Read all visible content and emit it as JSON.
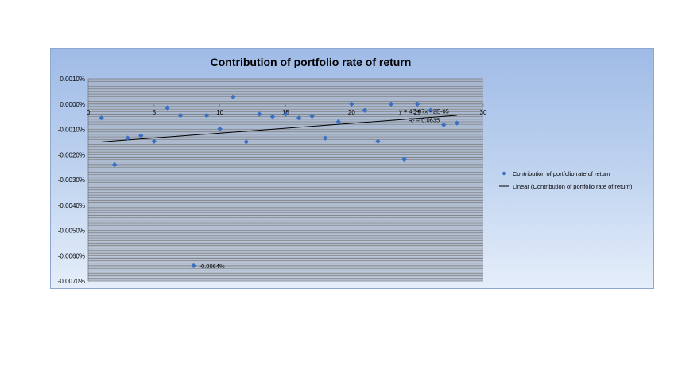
{
  "chart_data": {
    "type": "scatter",
    "title": "Contribution of portfolio rate of return",
    "xlabel": "",
    "ylabel": "",
    "xlim": [
      0,
      30
    ],
    "ylim": [
      -0.007,
      0.001
    ],
    "x_ticks": [
      "0",
      "5",
      "10",
      "15",
      "20",
      "25",
      "30"
    ],
    "y_ticks": [
      "0.0010%",
      "0.0000%",
      "-0.0010%",
      "-0.0020%",
      "-0.0030%",
      "-0.0040%",
      "-0.0050%",
      "-0.0060%",
      "-0.0070%"
    ],
    "grid": true,
    "legend_position": "right",
    "series": [
      {
        "name": "Contribution of portfolio rate of return",
        "marker": "diamond",
        "color": "#3a6fc4",
        "x": [
          1,
          2,
          3,
          4,
          5,
          6,
          7,
          8,
          9,
          10,
          11,
          12,
          13,
          14,
          15,
          16,
          17,
          18,
          19,
          20,
          21,
          22,
          23,
          24,
          25,
          26,
          27,
          28
        ],
        "y": [
          -0.00055,
          -0.0024,
          -0.00135,
          -0.00125,
          -0.00148,
          -0.00015,
          -0.00045,
          -0.0064,
          -0.00045,
          -0.00098,
          0.00028,
          -0.0015,
          -0.0004,
          -0.0005,
          -0.0004,
          -0.00055,
          -0.00048,
          -0.00135,
          -0.0007,
          0.0,
          -0.00025,
          -0.00148,
          0.0,
          -0.00218,
          0.0,
          -0.00025,
          -0.00082,
          -0.00075
        ]
      },
      {
        "name": "Linear (Contribution of portfolio rate of return)",
        "type": "trendline",
        "color": "#000000",
        "x": [
          1,
          28
        ],
        "y": [
          -0.0015,
          -0.00045
        ]
      }
    ],
    "annotations": [
      {
        "text": "-0.0064%",
        "x": 8,
        "y": -0.0064
      },
      {
        "text": "y = 4E-07x - 2E-05",
        "x": 25.5,
        "y": -0.00028
      },
      {
        "text": "R² = 0.0635",
        "x": 25.5,
        "y": -0.00062
      }
    ]
  }
}
